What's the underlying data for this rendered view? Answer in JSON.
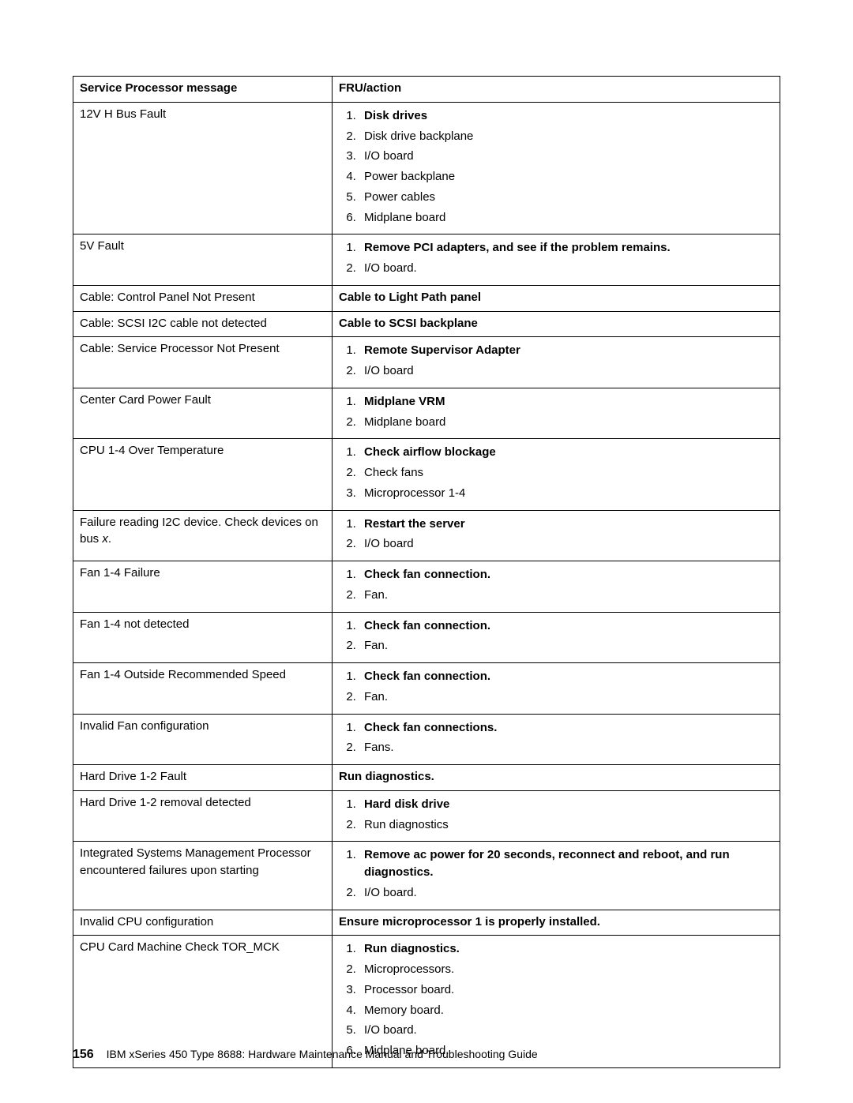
{
  "table": {
    "header": {
      "msg": "Service Processor message",
      "action": "FRU/action"
    },
    "rows": [
      {
        "msg": "12V H Bus Fault",
        "steps": [
          {
            "text": "Disk drives",
            "bold": true
          },
          {
            "text": "Disk drive backplane"
          },
          {
            "text": "I/O board"
          },
          {
            "text": "Power backplane"
          },
          {
            "text": "Power cables"
          },
          {
            "text": "Midplane board"
          }
        ]
      },
      {
        "msg": "5V Fault",
        "steps": [
          {
            "text": "Remove PCI adapters, and see if the problem remains.",
            "bold": true
          },
          {
            "text": "I/O board."
          }
        ]
      },
      {
        "msg": "Cable: Control Panel Not Present",
        "plain": "Cable to Light Path panel",
        "plain_bold": true
      },
      {
        "msg": "Cable: SCSI I2C cable not detected",
        "plain": "Cable to SCSI backplane",
        "plain_bold": true
      },
      {
        "msg": "Cable: Service Processor Not Present",
        "steps": [
          {
            "text": "Remote Supervisor Adapter",
            "bold": true
          },
          {
            "text": "I/O board"
          }
        ]
      },
      {
        "msg": "Center Card Power Fault",
        "steps": [
          {
            "text": "Midplane VRM",
            "bold": true
          },
          {
            "text": "Midplane board"
          }
        ]
      },
      {
        "msg": "CPU 1-4 Over Temperature",
        "steps": [
          {
            "text": "Check airflow blockage",
            "bold": true
          },
          {
            "text": "Check fans"
          },
          {
            "text": "Microprocessor 1-4"
          }
        ]
      },
      {
        "msg_html": "Failure reading I2C device. Check devices on bus <span class=\"italic\">x</span>.",
        "steps": [
          {
            "text": "Restart the server",
            "bold": true
          },
          {
            "text": "I/O board"
          }
        ]
      },
      {
        "msg": "Fan 1-4 Failure",
        "steps": [
          {
            "text": "Check fan connection.",
            "bold": true
          },
          {
            "text": "Fan."
          }
        ]
      },
      {
        "msg": "Fan 1-4 not detected",
        "steps": [
          {
            "text": "Check fan connection.",
            "bold": true
          },
          {
            "text": "Fan."
          }
        ]
      },
      {
        "msg": "Fan 1-4 Outside Recommended Speed",
        "steps": [
          {
            "text": "Check fan connection.",
            "bold": true
          },
          {
            "text": "Fan."
          }
        ]
      },
      {
        "msg": "Invalid Fan configuration",
        "steps": [
          {
            "text": "Check fan connections.",
            "bold": true
          },
          {
            "text": "Fans."
          }
        ]
      },
      {
        "msg": "Hard Drive 1-2 Fault",
        "plain": "Run diagnostics.",
        "plain_bold": true
      },
      {
        "msg": "Hard Drive 1-2 removal detected",
        "steps": [
          {
            "text": "Hard disk drive",
            "bold": true
          },
          {
            "text": "Run diagnostics"
          }
        ]
      },
      {
        "msg": "Integrated Systems Management Processor encountered failures upon starting",
        "steps": [
          {
            "text": "Remove ac power for 20 seconds, reconnect and reboot, and run diagnostics.",
            "bold": true
          },
          {
            "text": "I/O board."
          }
        ]
      },
      {
        "msg": "Invalid CPU configuration",
        "plain": "Ensure microprocessor 1 is properly installed.",
        "plain_bold": true
      },
      {
        "msg": "CPU Card Machine Check TOR_MCK",
        "steps": [
          {
            "text": "Run diagnostics.",
            "bold": true
          },
          {
            "text": "Microprocessors."
          },
          {
            "text": "Processor board."
          },
          {
            "text": "Memory board."
          },
          {
            "text": "I/O board."
          },
          {
            "text": "Midplane board."
          }
        ]
      }
    ]
  },
  "footer": {
    "page_number": "156",
    "text": "IBM xSeries 450 Type 8688: Hardware Maintenance Manual and Troubleshooting Guide"
  }
}
